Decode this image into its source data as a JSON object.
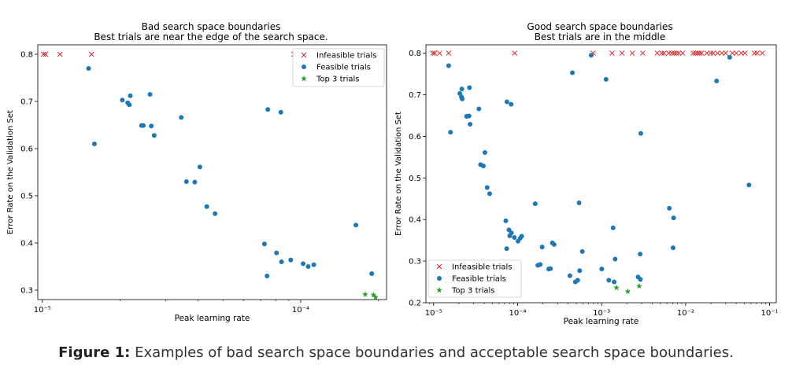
{
  "caption": {
    "label": "Figure 1:",
    "text": "Examples of bad search space boundaries and acceptable search space boundaries."
  },
  "colors": {
    "infeasible": "#d62728",
    "feasible": "#1f77b4",
    "top3": "#2ca02c"
  },
  "chart_data": [
    {
      "type": "scatter",
      "title": "Bad search space boundaries",
      "subtitle": "Best trials are near the edge of the search space.",
      "xlabel": "Peak learning rate",
      "ylabel": "Error Rate on the Validation Set",
      "xscale": "log",
      "xlim": [
        9.6e-06,
        0.000215
      ],
      "ylim": [
        0.28,
        0.82
      ],
      "xticks": [
        {
          "value": 1e-05,
          "label": "10⁻⁵"
        },
        {
          "value": 0.0001,
          "label": "10⁻⁴"
        }
      ],
      "yticks": [
        {
          "value": 0.3,
          "label": "0.3"
        },
        {
          "value": 0.4,
          "label": "0.4"
        },
        {
          "value": 0.5,
          "label": "0.5"
        },
        {
          "value": 0.6,
          "label": "0.6"
        },
        {
          "value": 0.7,
          "label": "0.7"
        },
        {
          "value": 0.8,
          "label": "0.8"
        }
      ],
      "legend_position": "top-right",
      "series": [
        {
          "name": "Infeasible trials",
          "marker": "x",
          "x": [
            1.01e-05,
            1.03e-05,
            1.17e-05,
            1.55e-05,
            9.42e-05
          ],
          "y": [
            0.8,
            0.8,
            0.8,
            0.8,
            0.8
          ]
        },
        {
          "name": "Feasible trials",
          "marker": "o",
          "x": [
            1.51e-05,
            1.59e-05,
            2.04e-05,
            2.14e-05,
            2.17e-05,
            2.19e-05,
            2.42e-05,
            2.46e-05,
            2.61e-05,
            2.64e-05,
            2.71e-05,
            3.45e-05,
            3.61e-05,
            3.89e-05,
            4.07e-05,
            4.33e-05,
            4.66e-05,
            7.24e-05,
            7.41e-05,
            7.46e-05,
            8.06e-05,
            8.38e-05,
            8.43e-05,
            9.15e-05,
            0.0001022,
            0.0001069,
            0.0001124,
            0.0001636,
            0.0001884
          ],
          "y": [
            0.77,
            0.61,
            0.703,
            0.697,
            0.693,
            0.712,
            0.649,
            0.649,
            0.715,
            0.648,
            0.628,
            0.666,
            0.53,
            0.529,
            0.561,
            0.477,
            0.462,
            0.398,
            0.33,
            0.683,
            0.379,
            0.677,
            0.36,
            0.364,
            0.356,
            0.35,
            0.354,
            0.438,
            0.335
          ]
        },
        {
          "name": "Top 3 trials",
          "marker": "*",
          "x": [
            0.0001778,
            0.0001912,
            0.0001949
          ],
          "y": [
            0.291,
            0.29,
            0.285
          ]
        }
      ]
    },
    {
      "type": "scatter",
      "title": "Good search space boundaries",
      "subtitle": "Best trials are in the middle",
      "xlabel": "Peak learning rate",
      "ylabel": "Error Rate on the Validation Set",
      "xscale": "log",
      "xlim": [
        8.1e-06,
        0.12
      ],
      "ylim": [
        0.2,
        0.82
      ],
      "xticks": [
        {
          "value": 1e-05,
          "label": "10⁻⁵"
        },
        {
          "value": 0.0001,
          "label": "10⁻⁴"
        },
        {
          "value": 0.001,
          "label": "10⁻³"
        },
        {
          "value": 0.01,
          "label": "10⁻²"
        },
        {
          "value": 0.1,
          "label": "10⁻¹"
        }
      ],
      "yticks": [
        {
          "value": 0.2,
          "label": "0.2"
        },
        {
          "value": 0.3,
          "label": "0.3"
        },
        {
          "value": 0.4,
          "label": "0.4"
        },
        {
          "value": 0.5,
          "label": "0.5"
        },
        {
          "value": 0.6,
          "label": "0.6"
        },
        {
          "value": 0.7,
          "label": "0.7"
        },
        {
          "value": 0.8,
          "label": "0.8"
        }
      ],
      "legend_position": "bottom-left",
      "series": [
        {
          "name": "Infeasible trials",
          "marker": "x",
          "x": [
            9.8e-06,
            1.03e-05,
            1.18e-05,
            1.51e-05,
            9.22e-05,
            0.000792,
            0.00133,
            0.00175,
            0.00232,
            0.00309,
            0.00459,
            0.00521,
            0.00555,
            0.0063,
            0.00687,
            0.00731,
            0.00778,
            0.00829,
            0.00924,
            0.0123,
            0.0131,
            0.0139,
            0.0146,
            0.0155,
            0.0179,
            0.0199,
            0.0213,
            0.024,
            0.027,
            0.03,
            0.036,
            0.04,
            0.046,
            0.051,
            0.066,
            0.071,
            0.082
          ],
          "y": [
            0.8,
            0.8,
            0.8,
            0.8,
            0.8,
            0.8,
            0.8,
            0.8,
            0.8,
            0.8,
            0.8,
            0.8,
            0.8,
            0.8,
            0.8,
            0.8,
            0.8,
            0.8,
            0.8,
            0.8,
            0.8,
            0.8,
            0.8,
            0.8,
            0.8,
            0.8,
            0.8,
            0.8,
            0.8,
            0.8,
            0.8,
            0.8,
            0.8,
            0.8,
            0.8,
            0.8,
            0.8
          ]
        },
        {
          "name": "Feasible trials",
          "marker": "o",
          "x": [
            1.51e-05,
            1.59e-05,
            2.05e-05,
            2.14e-05,
            2.17e-05,
            2.19e-05,
            2.47e-05,
            2.64e-05,
            2.67e-05,
            2.72e-05,
            3.46e-05,
            3.62e-05,
            3.91e-05,
            4.08e-05,
            4.34e-05,
            4.65e-05,
            7.24e-05,
            7.41e-05,
            7.46e-05,
            7.89e-05,
            8.06e-05,
            8.37e-05,
            8.44e-05,
            9.14e-05,
            0.0001011,
            0.0001073,
            0.000112,
            0.000162,
            0.000174,
            0.000186,
            0.000196,
            0.000235,
            0.000246,
            0.000259,
            0.000272,
            0.000419,
            0.000449,
            0.000487,
            0.000519,
            0.000539,
            0.000548,
            0.000589,
            0.000752,
            0.001003,
            0.00113,
            0.00122,
            0.00137,
            0.00141,
            0.00145,
            0.00272,
            0.0029,
            0.00288,
            0.00293,
            0.0064,
            0.0071,
            0.0072,
            0.0234,
            0.0335,
            0.0568
          ],
          "y": [
            0.77,
            0.61,
            0.703,
            0.695,
            0.714,
            0.69,
            0.648,
            0.649,
            0.717,
            0.629,
            0.666,
            0.532,
            0.529,
            0.561,
            0.477,
            0.462,
            0.397,
            0.33,
            0.683,
            0.375,
            0.361,
            0.677,
            0.368,
            0.357,
            0.348,
            0.355,
            0.36,
            0.438,
            0.29,
            0.292,
            0.334,
            0.281,
            0.282,
            0.344,
            0.34,
            0.265,
            0.753,
            0.25,
            0.254,
            0.44,
            0.277,
            0.323,
            0.795,
            0.281,
            0.737,
            0.254,
            0.38,
            0.25,
            0.305,
            0.262,
            0.256,
            0.317,
            0.607,
            0.427,
            0.332,
            0.404,
            0.733,
            0.79,
            0.483
          ]
        },
        {
          "name": "Top 3 trials",
          "marker": "*",
          "x": [
            0.0015,
            0.00205,
            0.0028
          ],
          "y": [
            0.236,
            0.227,
            0.24
          ]
        }
      ]
    }
  ]
}
